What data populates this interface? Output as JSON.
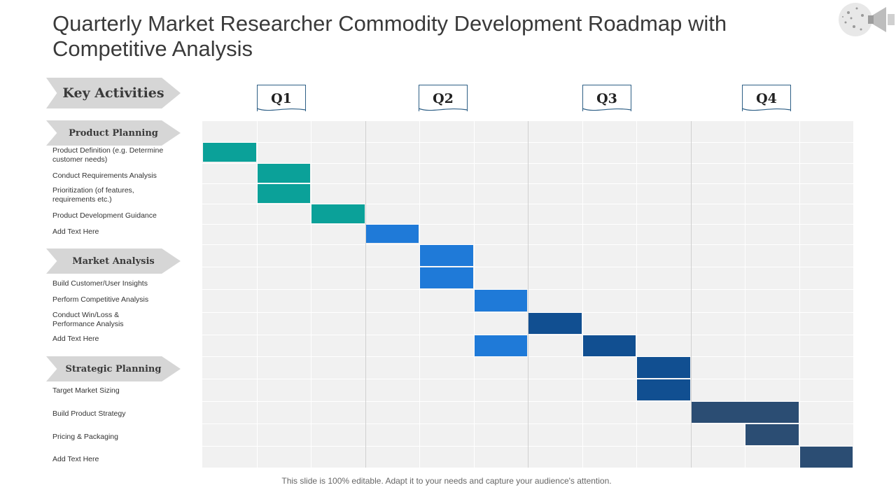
{
  "title": "Quarterly Market Researcher Commodity Development Roadmap with Competitive Analysis",
  "key_activities_label": "Key Activities",
  "categories": [
    {
      "label": "Product Planning"
    },
    {
      "label": "Market Analysis"
    },
    {
      "label": "Strategic Planning"
    }
  ],
  "activities": [
    {
      "label": "Product Definition (e.g. Determine customer needs)",
      "category": 0,
      "start": 0,
      "span": 1,
      "color": "#0ba199"
    },
    {
      "label": "Conduct Requirements Analysis",
      "category": 0,
      "start": 1,
      "span": 1,
      "color": "#0ba199"
    },
    {
      "label": "Prioritization (of features, requirements etc.)",
      "category": 0,
      "start": 1,
      "span": 1,
      "color": "#0ba199"
    },
    {
      "label": "Product Development Guidance",
      "category": 0,
      "start": 2,
      "span": 1,
      "color": "#0ba199"
    },
    {
      "label": "Add Text Here",
      "category": 0,
      "start": 3,
      "span": 1,
      "color": "#1f7ad8"
    },
    {
      "label": "Build Customer/User Insights",
      "category": 1,
      "start": 4,
      "span": 1,
      "color": "#1f7ad8"
    },
    {
      "label": "Perform Competitive Analysis",
      "category": 1,
      "start": 5,
      "span": 1,
      "color": "#1f7ad8"
    },
    {
      "label": "Conduct Win/Loss & Performance Analysis",
      "category": 1,
      "start": 6,
      "span": 1,
      "color": "#114f91"
    },
    {
      "label": "Add Text Here",
      "category": 1,
      "start": 5,
      "span": 1,
      "color": "#1f7ad8",
      "extra": {
        "start": 7,
        "span": 1,
        "color": "#114f91"
      }
    },
    {
      "label": "Target Market Sizing",
      "category": 2,
      "start": 8,
      "span": 1,
      "color": "#114f91"
    },
    {
      "label": "Build Product Strategy",
      "category": 2,
      "start": 9,
      "span": 2,
      "color": "#2b4d73"
    },
    {
      "label": "Pricing & Packaging",
      "category": 2,
      "start": 10,
      "span": 1,
      "color": "#2b4d73"
    },
    {
      "label": "Add Text Here",
      "category": 2,
      "start": 11,
      "span": 1,
      "color": "#2b4d73"
    }
  ],
  "quarters": [
    {
      "label": "Q1"
    },
    {
      "label": "Q2"
    },
    {
      "label": "Q3"
    },
    {
      "label": "Q4"
    }
  ],
  "footer": "This slide is 100% editable. Adapt it to your needs and capture your audience's attention."
}
